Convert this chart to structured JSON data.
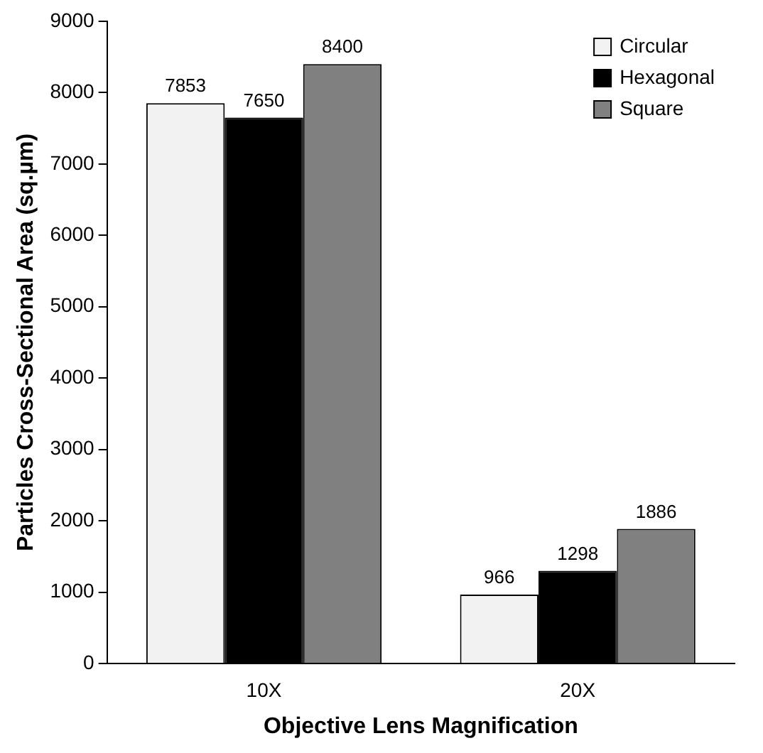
{
  "chart_data": {
    "type": "bar",
    "xlabel": "Objective Lens Magnification",
    "ylabel": "Particles Cross-Sectional Area (sq.µm)",
    "categories": [
      "10X",
      "20X"
    ],
    "series": [
      {
        "name": "Circular",
        "color": "#f2f2f2",
        "values": [
          7853,
          966
        ]
      },
      {
        "name": "Hexagonal",
        "color": "#000000",
        "values": [
          7650,
          1298
        ]
      },
      {
        "name": "Square",
        "color": "#808080",
        "values": [
          8400,
          1886
        ]
      }
    ],
    "ylim": [
      0,
      9000
    ],
    "yticks": [
      0,
      1000,
      2000,
      3000,
      4000,
      5000,
      6000,
      7000,
      8000,
      9000
    ],
    "grid": false,
    "legend": "top right",
    "data_labels": true
  }
}
